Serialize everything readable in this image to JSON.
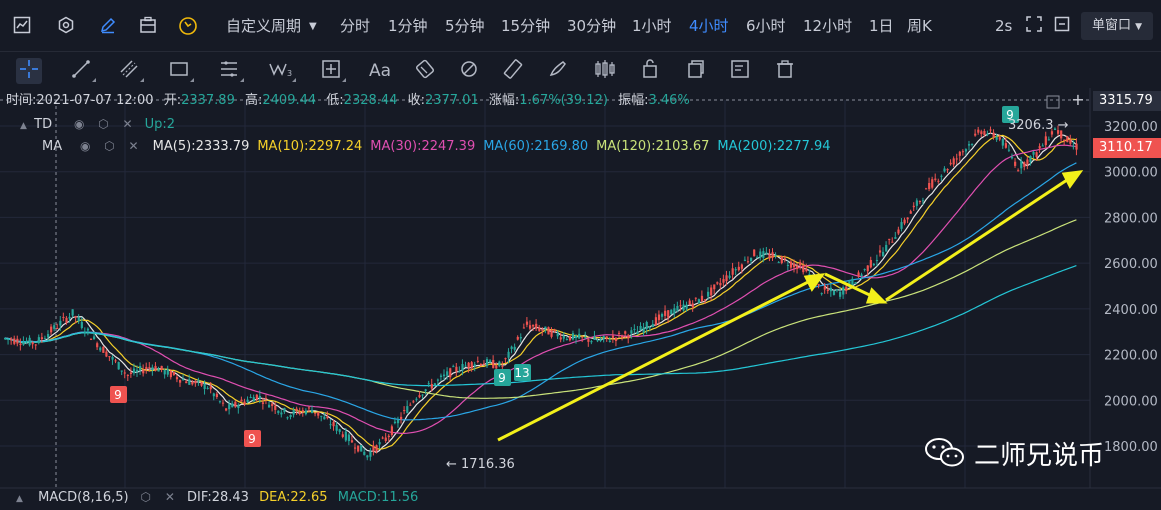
{
  "topbar": {
    "period_dropdown": "自定义周期",
    "periods": [
      "分时",
      "1分钟",
      "5分钟",
      "15分钟",
      "30分钟",
      "1小时",
      "4小时",
      "6小时",
      "12小时",
      "1日",
      "周K"
    ],
    "active_period": "4小时",
    "refresh": "2s",
    "window_mode": "单窗口"
  },
  "drawing_tools": [
    "crosshair-icon",
    "trendline-icon",
    "parallel-channel-icon",
    "rectangle-icon",
    "fibonacci-icon",
    "wave-icon",
    "measure-icon",
    "text-icon",
    "eraser-icon",
    "magnet-icon",
    "ruler-icon",
    "brush-icon",
    "candle-type-icon",
    "lock-icon",
    "copy-icon",
    "note-icon",
    "trash-icon"
  ],
  "ohlc": {
    "time_label": "时间:",
    "time": "2021-07-07 12:00",
    "open_label": "开:",
    "open": "2337.89",
    "high_label": "高:",
    "high": "2409.44",
    "low_label": "低:",
    "low": "2328.44",
    "close_label": "收:",
    "close": "2377.01",
    "change_label": "涨幅:",
    "change": "1.67%(39.12)",
    "amplitude_label": "振幅:",
    "amplitude": "3.46%"
  },
  "td_indicator": {
    "name": "TD",
    "status": "Up:2"
  },
  "ma_indicator": {
    "name": "MA",
    "items": [
      {
        "label": "MA(5):2333.79",
        "color": "#e6e6e6"
      },
      {
        "label": "MA(10):2297.24",
        "color": "#f5d02a"
      },
      {
        "label": "MA(30):2247.39",
        "color": "#e04fb1"
      },
      {
        "label": "MA(60):2169.80",
        "color": "#2aa6e6"
      },
      {
        "label": "MA(120):2103.67",
        "color": "#c9e27a"
      },
      {
        "label": "MA(200):2277.94",
        "color": "#24c6d6"
      }
    ]
  },
  "price_axis": {
    "labels": [
      "3200.00",
      "3000.00",
      "2800.00",
      "2600.00",
      "2400.00",
      "2200.00",
      "2000.00",
      "1800.00"
    ],
    "crosshair_price": "3315.79",
    "last_price": "3110.17"
  },
  "annotations": {
    "high_mark": "3206.3",
    "low_mark": "1716.36",
    "td_counts": [
      "9",
      "9",
      "9",
      "13",
      "9"
    ]
  },
  "macd": {
    "name": "MACD(8,16,5)",
    "dif": "DIF:28.43",
    "dea": "DEA:22.65",
    "macd": "MACD:11.56"
  },
  "watermark": {
    "text": "二师兄说币"
  },
  "colors": {
    "up": "#26a69a",
    "down": "#ef5350",
    "background": "#161a25",
    "accent": "#3f8cff",
    "arrow": "#f3f01a"
  }
}
